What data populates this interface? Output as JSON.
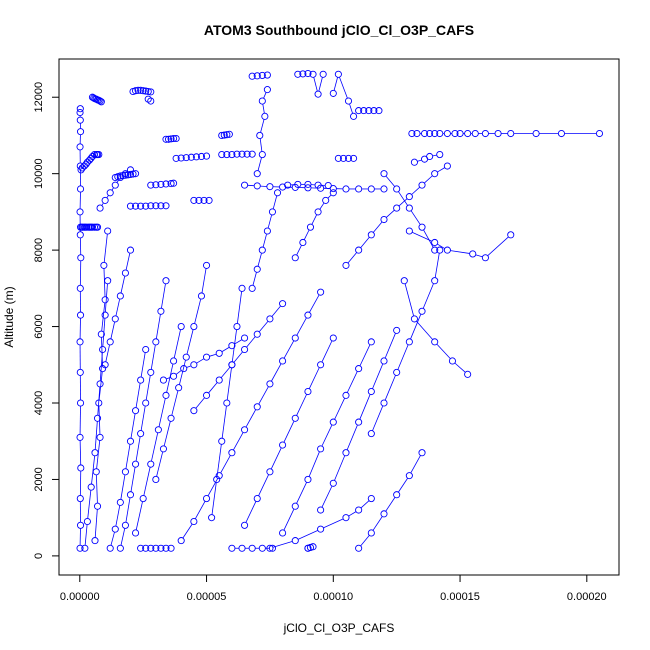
{
  "chart_data": {
    "type": "scatter",
    "title": "ATOM3 Southbound jClO_Cl_O3P_CAFS",
    "xlabel": "jClO_Cl_O3P_CAFS",
    "ylabel": "Altitude (m)",
    "x_ticks": [
      "0.00000",
      "0.00005",
      "0.00010",
      "0.00015",
      "0.00020"
    ],
    "x_tick_values": [
      0,
      5e-05,
      0.0001,
      0.00015,
      0.0002
    ],
    "y_ticks": [
      "0",
      "2000",
      "4000",
      "6000",
      "8000",
      "10000",
      "12000"
    ],
    "y_tick_values": [
      0,
      2000,
      4000,
      6000,
      8000,
      10000,
      12000
    ],
    "xlim": [
      -8.2e-06,
      0.0002127
    ],
    "ylim": [
      -500,
      13000
    ],
    "grid": false,
    "marker": "open-circle",
    "series_color": "#0000ff",
    "series": [
      {
        "x": [
          1e-07,
          3e-07,
          2e-07,
          4e-07,
          1e-07,
          3e-07,
          2e-07,
          1e-07,
          3e-07,
          2e-07,
          4e-07,
          2e-07,
          1e-07,
          3e-07,
          2e-07,
          1e-07,
          3e-07,
          2e-07,
          1e-07,
          2e-07
        ],
        "y": [
          200,
          800,
          1500,
          2300,
          3100,
          4000,
          4800,
          5600,
          6300,
          7000,
          7800,
          8400,
          9000,
          9600,
          10200,
          10700,
          11100,
          11400,
          11600,
          11700
        ]
      },
      {
        "x": [
          3e-07,
          8e-07,
          1.2e-06,
          1.8e-06,
          2.2e-06,
          2.8e-06,
          3.5e-06,
          4e-06,
          4.5e-06,
          5e-06,
          5.8e-06,
          6.5e-06,
          7e-06
        ],
        "y": [
          8600,
          8600,
          8600,
          8600,
          8600,
          8600,
          8600,
          8600,
          8600,
          8600,
          8600,
          8600,
          8600
        ]
      },
      {
        "x": [
          5e-07,
          1e-06,
          1.8e-06,
          2.5e-06,
          3e-06,
          3.8e-06,
          4.4e-06,
          5e-06,
          5.8e-06,
          6.6e-06,
          7e-06,
          7.5e-06
        ],
        "y": [
          10100,
          10150,
          10200,
          10250,
          10300,
          10350,
          10400,
          10450,
          10500,
          10500,
          10500,
          10500
        ]
      },
      {
        "x": [
          5e-06,
          5.5e-06,
          6e-06,
          6.5e-06,
          7e-06,
          7.5e-06,
          8e-06,
          8.5e-06
        ],
        "y": [
          12000,
          11980,
          11960,
          11950,
          11930,
          11920,
          11900,
          11880
        ]
      },
      {
        "x": [
          2e-06,
          3e-06,
          4.5e-06,
          6e-06,
          7e-06,
          8e-06,
          9e-06,
          1e-05,
          1.1e-05
        ],
        "y": [
          200,
          900,
          1800,
          2700,
          3600,
          4500,
          5400,
          6300,
          7200
        ]
      },
      {
        "x": [
          6e-06,
          7e-06,
          6.5e-06,
          8e-06,
          7.5e-06,
          9e-06,
          8.5e-06,
          1e-05,
          9.5e-06,
          1.1e-05
        ],
        "y": [
          400,
          1300,
          2200,
          3100,
          4000,
          4900,
          5800,
          6700,
          7600,
          8500
        ]
      },
      {
        "x": [
          1.4e-05,
          1.5e-05,
          1.6e-05,
          1.7e-05,
          1.8e-05,
          1.9e-05,
          2e-05,
          2.1e-05,
          2.2e-05
        ],
        "y": [
          9900,
          9920,
          9940,
          9950,
          9960,
          9970,
          9980,
          9990,
          10000
        ]
      },
      {
        "x": [
          2.1e-05,
          2.2e-05,
          2.3e-05,
          2.4e-05,
          2.5e-05,
          2.6e-05,
          2.7e-05,
          2.8e-05
        ],
        "y": [
          12150,
          12170,
          12180,
          12180,
          12170,
          12160,
          12150,
          12140
        ]
      },
      {
        "x": [
          2e-05,
          2.2e-05,
          2.4e-05,
          2.6e-05,
          2.8e-05,
          3e-05,
          3.2e-05,
          3.4e-05
        ],
        "y": [
          9150,
          9150,
          9150,
          9150,
          9160,
          9160,
          9160,
          9160
        ]
      },
      {
        "x": [
          2.8e-05,
          3e-05,
          3.2e-05,
          3.4e-05,
          3.6e-05,
          3.7e-05
        ],
        "y": [
          9700,
          9710,
          9720,
          9730,
          9740,
          9750
        ]
      },
      {
        "x": [
          2.7e-05,
          2.8e-05
        ],
        "y": [
          11950,
          11900
        ]
      },
      {
        "x": [
          1.2e-05,
          1.4e-05,
          1.6e-05,
          1.8e-05,
          2e-05,
          2.2e-05,
          2.4e-05,
          2.6e-05
        ],
        "y": [
          200,
          700,
          1400,
          2200,
          3000,
          3800,
          4600,
          5400
        ]
      },
      {
        "x": [
          1.6e-05,
          1.8e-05,
          2e-05,
          2.2e-05,
          2.4e-05,
          2.6e-05,
          2.8e-05,
          3e-05,
          3.2e-05,
          3.4e-05
        ],
        "y": [
          200,
          800,
          1600,
          2400,
          3200,
          4000,
          4800,
          5600,
          6400,
          7200
        ]
      },
      {
        "x": [
          2.4e-05,
          2.6e-05,
          2.8e-05,
          3e-05,
          3.2e-05,
          3.4e-05,
          3.6e-05
        ],
        "y": [
          200,
          200,
          200,
          200,
          200,
          200,
          200
        ]
      },
      {
        "x": [
          2.2e-05,
          2.5e-05,
          2.8e-05,
          3.1e-05,
          3.4e-05,
          3.7e-05,
          4e-05
        ],
        "y": [
          600,
          1500,
          2400,
          3300,
          4200,
          5100,
          6000
        ]
      },
      {
        "x": [
          3.4e-05,
          3.5e-05,
          3.6e-05,
          3.7e-05,
          3.8e-05
        ],
        "y": [
          10900,
          10900,
          10910,
          10920,
          10920
        ]
      },
      {
        "x": [
          3.8e-05,
          4e-05,
          4.2e-05,
          4.4e-05,
          4.6e-05,
          4.8e-05,
          5e-05
        ],
        "y": [
          10400,
          10410,
          10420,
          10430,
          10440,
          10450,
          10460
        ]
      },
      {
        "x": [
          4.5e-05,
          4.7e-05,
          4.9e-05,
          5.1e-05
        ],
        "y": [
          9300,
          9300,
          9300,
          9300
        ]
      },
      {
        "x": [
          5.6e-05,
          5.7e-05,
          5.8e-05,
          5.9e-05
        ],
        "y": [
          11000,
          11010,
          11020,
          11030
        ]
      },
      {
        "x": [
          5.6e-05,
          5.8e-05,
          6e-05,
          6.2e-05,
          6.4e-05,
          6.6e-05,
          6.8e-05
        ],
        "y": [
          10500,
          10500,
          10500,
          10510,
          10510,
          10510,
          10510
        ]
      },
      {
        "x": [
          6.8e-05,
          7e-05,
          7.2e-05,
          7.4e-05
        ],
        "y": [
          12550,
          12560,
          12570,
          12580
        ]
      },
      {
        "x": [
          7.4e-05,
          7.2e-05,
          7.3e-05,
          7.1e-05,
          7.2e-05,
          7e-05
        ],
        "y": [
          12200,
          11900,
          11500,
          11000,
          10500,
          10000
        ]
      },
      {
        "x": [
          8.6e-05,
          8.8e-05,
          9e-05,
          9.2e-05,
          9.4e-05,
          9.6e-05
        ],
        "y": [
          12600,
          12610,
          12620,
          12600,
          12080,
          12600
        ]
      },
      {
        "x": [
          0.0001,
          0.000102,
          0.000106,
          0.000108
        ],
        "y": [
          12100,
          12600,
          11900,
          11500
        ]
      },
      {
        "x": [
          6.5e-05,
          7e-05,
          7.5e-05,
          8e-05,
          8.5e-05,
          9e-05,
          9.5e-05,
          0.0001,
          0.000105,
          0.00011,
          0.000115,
          0.00012
        ],
        "y": [
          9700,
          9680,
          9660,
          9650,
          9640,
          9630,
          9620,
          9610,
          9600,
          9600,
          9600,
          9600
        ]
      },
      {
        "x": [
          8.2e-05,
          8.6e-05,
          9e-05,
          9.4e-05,
          9.8e-05
        ],
        "y": [
          9700,
          9720,
          9720,
          9700,
          9690
        ]
      },
      {
        "x": [
          0.00011,
          0.000112,
          0.000114,
          0.000116,
          0.000118
        ],
        "y": [
          11650,
          11650,
          11650,
          11650,
          11650
        ]
      },
      {
        "x": [
          0.000102,
          0.000104,
          0.000106,
          0.000108
        ],
        "y": [
          10400,
          10400,
          10400,
          10400
        ]
      },
      {
        "x": [
          0.000131,
          0.000133,
          0.000136,
          0.000138,
          0.00014,
          0.000142,
          0.000145,
          0.000148,
          0.00015,
          0.000153,
          0.000156,
          0.00016,
          0.000165,
          0.00017,
          0.00018,
          0.00019,
          0.000205
        ],
        "y": [
          11050,
          11050,
          11050,
          11050,
          11050,
          11050,
          11050,
          11050,
          11050,
          11050,
          11050,
          11050,
          11050,
          11050,
          11050,
          11050,
          11050
        ]
      },
      {
        "x": [
          0.000132,
          0.000136,
          0.000138,
          0.000142
        ],
        "y": [
          10300,
          10380,
          10450,
          10500
        ]
      },
      {
        "x": [
          0.00013,
          0.00014,
          0.000145,
          0.000155,
          0.00016,
          0.00017
        ],
        "y": [
          8500,
          8200,
          8000,
          7900,
          7800,
          8400
        ]
      },
      {
        "x": [
          0.000128,
          0.000132,
          0.00014,
          0.000147,
          0.000153
        ],
        "y": [
          7200,
          6200,
          5600,
          5100,
          4750
        ]
      },
      {
        "x": [
          0.00011,
          0.000115,
          0.00012,
          0.000125,
          0.00013,
          0.000135
        ],
        "y": [
          200,
          600,
          1100,
          1600,
          2100,
          2700
        ]
      },
      {
        "x": [
          7.5e-05,
          8.5e-05,
          9.5e-05,
          0.000105,
          0.00011,
          0.000115
        ],
        "y": [
          200,
          400,
          700,
          1000,
          1200,
          1500
        ]
      },
      {
        "x": [
          9e-05,
          9e-05,
          9.1e-05,
          9.2e-05
        ],
        "y": [
          200,
          200,
          220,
          240
        ]
      },
      {
        "x": [
          6e-05,
          6.4e-05,
          6.8e-05,
          7.2e-05,
          7.6e-05
        ],
        "y": [
          200,
          200,
          200,
          200,
          200
        ]
      },
      {
        "x": [
          4e-05,
          4.5e-05,
          5e-05,
          5.5e-05,
          6e-05,
          6.5e-05,
          7e-05,
          7.5e-05,
          8e-05,
          8.5e-05,
          9e-05,
          9.5e-05
        ],
        "y": [
          400,
          900,
          1500,
          2100,
          2700,
          3300,
          3900,
          4500,
          5100,
          5700,
          6300,
          6900
        ]
      },
      {
        "x": [
          4.5e-05,
          5e-05,
          5.5e-05,
          6e-05,
          6.5e-05,
          7e-05,
          7.5e-05,
          8e-05
        ],
        "y": [
          3800,
          4200,
          4600,
          5000,
          5400,
          5800,
          6200,
          6600
        ]
      },
      {
        "x": [
          6.5e-05,
          7e-05,
          7.5e-05,
          8e-05,
          8.5e-05,
          9e-05,
          9.5e-05,
          0.0001
        ],
        "y": [
          800,
          1500,
          2200,
          2900,
          3600,
          4300,
          5000,
          5700
        ]
      },
      {
        "x": [
          8e-05,
          8.5e-05,
          9e-05,
          9.5e-05,
          0.0001,
          0.000105,
          0.00011,
          0.000115
        ],
        "y": [
          600,
          1300,
          2000,
          2800,
          3500,
          4200,
          4900,
          5600
        ]
      },
      {
        "x": [
          9.5e-05,
          0.0001,
          0.000105,
          0.00011,
          0.000115,
          0.00012,
          0.000125
        ],
        "y": [
          1200,
          1900,
          2700,
          3500,
          4300,
          5100,
          5900
        ]
      },
      {
        "x": [
          0.000115,
          0.00012,
          0.000125,
          0.00013,
          0.000135,
          0.00014,
          0.000142
        ],
        "y": [
          3200,
          4000,
          4800,
          5600,
          6400,
          7200,
          8000
        ]
      },
      {
        "x": [
          0.000105,
          0.00011,
          0.000115,
          0.00012,
          0.000125,
          0.00013,
          0.000135,
          0.00014,
          0.000145
        ],
        "y": [
          7600,
          8000,
          8400,
          8800,
          9100,
          9400,
          9700,
          10000,
          10200
        ]
      },
      {
        "x": [
          0.00012,
          0.000125,
          0.00013,
          0.000135,
          0.00014
        ],
        "y": [
          10000,
          9600,
          9100,
          8600,
          8000
        ]
      },
      {
        "x": [
          3.3e-05,
          3.7e-05,
          4.1e-05,
          4.5e-05,
          5e-05,
          5.5e-05,
          6e-05,
          6.5e-05
        ],
        "y": [
          4600,
          4700,
          4900,
          5000,
          5200,
          5300,
          5500,
          5700
        ]
      },
      {
        "x": [
          8e-06,
          1e-05,
          1.2e-05,
          1.4e-05,
          1.6e-05,
          1.8e-05,
          2e-05
        ],
        "y": [
          9100,
          9300,
          9500,
          9700,
          9900,
          10000,
          10100
        ]
      },
      {
        "x": [
          1e-05,
          1.2e-05,
          1.4e-05,
          1.6e-05,
          1.8e-05,
          2e-05
        ],
        "y": [
          5000,
          5600,
          6200,
          6800,
          7400,
          8000
        ]
      },
      {
        "x": [
          3e-05,
          3.3e-05,
          3.6e-05,
          3.9e-05,
          4.2e-05,
          4.5e-05,
          4.8e-05,
          5e-05
        ],
        "y": [
          2000,
          2800,
          3600,
          4400,
          5200,
          6000,
          6800,
          7600
        ]
      },
      {
        "x": [
          5.2e-05,
          5.4e-05,
          5.6e-05,
          5.8e-05,
          6e-05,
          6.2e-05,
          6.4e-05
        ],
        "y": [
          1000,
          2000,
          3000,
          4000,
          5000,
          6000,
          7000
        ]
      },
      {
        "x": [
          6.8e-05,
          7e-05,
          7.2e-05,
          7.4e-05,
          7.6e-05,
          7.8e-05
        ],
        "y": [
          7000,
          7500,
          8000,
          8500,
          9000,
          9500
        ]
      },
      {
        "x": [
          8.5e-05,
          8.8e-05,
          9.1e-05,
          9.4e-05,
          9.7e-05,
          0.0001
        ],
        "y": [
          7800,
          8200,
          8600,
          9000,
          9300,
          9500
        ]
      }
    ]
  }
}
